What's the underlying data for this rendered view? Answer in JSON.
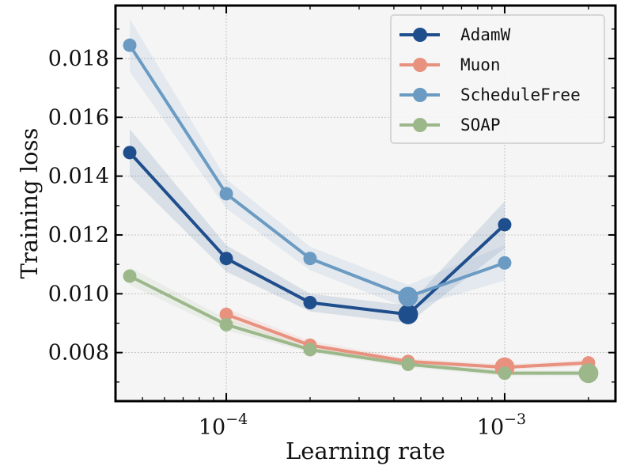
{
  "chart_data": {
    "type": "line",
    "title": "",
    "xlabel": "Learning rate",
    "ylabel": "Training loss",
    "xscale": "log",
    "xlim": [
      4e-05,
      0.0025
    ],
    "ylim": [
      0.00635,
      0.0198
    ],
    "grid": true,
    "legend_position": "top-right",
    "x_tick_labels": [
      {
        "value": 0.0001,
        "base": "10",
        "exp": "−4"
      },
      {
        "value": 0.001,
        "base": "10",
        "exp": "−3"
      }
    ],
    "y_ticks": [
      0.008,
      0.01,
      0.012,
      0.014,
      0.016,
      0.018
    ],
    "y_tick_labels": [
      "0.008",
      "0.010",
      "0.012",
      "0.014",
      "0.016",
      "0.018"
    ],
    "series": [
      {
        "name": "AdamW",
        "color": "#1f4e8c",
        "x": [
          4.5e-05,
          0.0001,
          0.0002,
          0.00045,
          0.001
        ],
        "values": [
          0.0148,
          0.0112,
          0.0097,
          0.0093,
          0.01235
        ],
        "band": [
          0.0008,
          0.00045,
          0.0003,
          0.0003,
          0.0008
        ],
        "best_index": 3
      },
      {
        "name": "Muon",
        "color": "#e8917f",
        "x": [
          0.0001,
          0.0002,
          0.00045,
          0.001,
          0.002
        ],
        "values": [
          0.0093,
          0.00825,
          0.0077,
          0.0075,
          0.00765
        ],
        "band": [
          0.0002,
          0.00015,
          0.0001,
          0.0001,
          0.0001
        ],
        "best_index": 3
      },
      {
        "name": "ScheduleFree",
        "color": "#6b9bc3",
        "x": [
          4.5e-05,
          0.0001,
          0.0002,
          0.00045,
          0.001
        ],
        "values": [
          0.01845,
          0.0134,
          0.0112,
          0.0099,
          0.01105
        ],
        "band": [
          0.0009,
          0.0005,
          0.0004,
          0.0004,
          0.0006
        ],
        "best_index": 3
      },
      {
        "name": "SOAP",
        "color": "#9cb88a",
        "x": [
          4.5e-05,
          0.0001,
          0.0002,
          0.00045,
          0.001,
          0.002
        ],
        "values": [
          0.0106,
          0.00895,
          0.0081,
          0.0076,
          0.0073,
          0.0073
        ],
        "band": [
          0.0003,
          0.0002,
          0.0001,
          0.0001,
          0.0001,
          0.0001
        ],
        "best_index": 5
      }
    ]
  }
}
